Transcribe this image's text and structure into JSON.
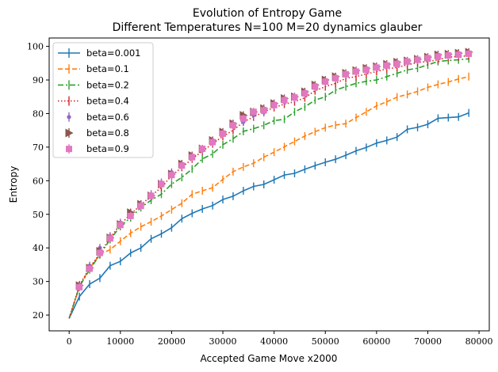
{
  "chart_data": {
    "type": "line",
    "title": "Evolution of Entropy Game",
    "subtitle": "Different Temperatures N=100 M=20 dynamics glauber",
    "xlabel": "Accepted Game Move x2000",
    "ylabel": "Entropy",
    "xlim": [
      -3900,
      82000
    ],
    "ylim": [
      15.3,
      102.5
    ],
    "x_ticks": [
      0,
      10000,
      20000,
      30000,
      40000,
      50000,
      60000,
      70000,
      80000
    ],
    "y_ticks": [
      20,
      30,
      40,
      50,
      60,
      70,
      80,
      90,
      100
    ],
    "grid": false,
    "legend_position": "upper-left",
    "x": [
      0,
      2000,
      4000,
      6000,
      8000,
      10000,
      12000,
      14000,
      16000,
      18000,
      20000,
      22000,
      24000,
      26000,
      28000,
      30000,
      32000,
      34000,
      36000,
      38000,
      40000,
      42000,
      44000,
      46000,
      48000,
      50000,
      52000,
      54000,
      56000,
      58000,
      60000,
      62000,
      64000,
      66000,
      68000,
      70000,
      72000,
      74000,
      76000,
      78000
    ],
    "series": [
      {
        "name": "beta=0.001",
        "color": "#1f77b4",
        "line": "solid",
        "marker": "none",
        "values": [
          19.0,
          25.5,
          29.2,
          31.0,
          34.7,
          36.0,
          38.5,
          40.0,
          42.7,
          44.2,
          46.0,
          48.7,
          50.3,
          51.6,
          52.6,
          54.4,
          55.4,
          57.0,
          58.3,
          58.9,
          60.3,
          61.7,
          62.2,
          63.4,
          64.5,
          65.5,
          66.4,
          67.6,
          68.9,
          69.9,
          71.2,
          72.0,
          73.0,
          75.3,
          75.9,
          76.8,
          78.6,
          78.8,
          79.0,
          80.2
        ]
      },
      {
        "name": "beta=0.1",
        "color": "#ff7f0e",
        "line": "dashed",
        "marker": "none",
        "values": [
          19.0,
          28.3,
          34.0,
          38.0,
          39.5,
          42.0,
          44.4,
          46.3,
          47.8,
          49.5,
          51.4,
          53.3,
          56.0,
          57.0,
          57.9,
          60.4,
          62.7,
          64.1,
          65.2,
          67.0,
          68.5,
          70.1,
          71.7,
          73.3,
          74.6,
          75.8,
          76.6,
          77.0,
          78.8,
          80.5,
          82.3,
          83.5,
          84.9,
          85.7,
          86.6,
          87.8,
          88.7,
          89.4,
          90.3,
          91.0
        ]
      },
      {
        "name": "beta=0.2",
        "color": "#2ca02c",
        "line": "dashdot",
        "marker": "none",
        "values": [
          19.0,
          28.5,
          33.5,
          38.0,
          42.5,
          46.4,
          49.0,
          52.0,
          54.2,
          56.0,
          59.0,
          61.0,
          63.5,
          66.5,
          68.0,
          70.7,
          72.5,
          74.7,
          75.5,
          76.5,
          77.9,
          78.3,
          80.5,
          82.0,
          84.0,
          85.0,
          87.0,
          88.0,
          89.0,
          89.6,
          90.0,
          91.0,
          92.0,
          93.0,
          93.5,
          94.5,
          95.5,
          95.8,
          96.0,
          96.3
        ]
      },
      {
        "name": "beta=0.4",
        "color": "#d62728",
        "line": "dotted",
        "marker": "none",
        "values": [
          19.0,
          28.8,
          34.1,
          38.3,
          43.0,
          47.0,
          50.0,
          52.8,
          55.5,
          58.0,
          61.5,
          64.0,
          66.5,
          68.8,
          71.0,
          73.2,
          75.0,
          77.5,
          79.0,
          80.5,
          81.8,
          82.8,
          83.5,
          84.7,
          86.8,
          88.0,
          89.0,
          90.5,
          91.0,
          91.8,
          92.5,
          93.3,
          93.7,
          94.5,
          95.2,
          95.5,
          96.0,
          96.8,
          97.0,
          97.2
        ]
      },
      {
        "name": "beta=0.6",
        "color": "#9467bd",
        "line": "none",
        "marker": "point",
        "values": [
          19.0,
          29.0,
          34.7,
          40.0,
          43.5,
          47.5,
          50.5,
          53.0,
          56.0,
          59.5,
          62.5,
          65.0,
          67.0,
          69.0,
          71.7,
          74.0,
          76.3,
          77.5,
          79.5,
          80.3,
          82.5,
          83.5,
          84.5,
          86.0,
          88.0,
          89.5,
          90.5,
          91.5,
          92.5,
          93.3,
          94.0,
          94.5,
          95.0,
          95.5,
          96.0,
          96.5,
          97.0,
          97.3,
          97.5,
          98.0
        ]
      },
      {
        "name": "beta=0.8",
        "color": "#8c564b",
        "line": "none",
        "marker": "triangle-right",
        "values": [
          19.0,
          28.8,
          34.0,
          39.0,
          43.0,
          47.0,
          50.5,
          53.0,
          55.5,
          59.0,
          62.0,
          65.0,
          67.5,
          69.5,
          72.0,
          74.5,
          77.0,
          79.5,
          80.5,
          81.5,
          83.0,
          84.5,
          85.0,
          86.5,
          88.5,
          90.0,
          91.0,
          92.0,
          92.8,
          93.5,
          94.0,
          94.7,
          95.3,
          95.7,
          96.2,
          96.8,
          97.5,
          97.7,
          98.0,
          98.3
        ]
      },
      {
        "name": "beta=0.9",
        "color": "#e377c2",
        "line": "none",
        "marker": "square",
        "values": [
          19.0,
          28.3,
          33.8,
          38.5,
          42.8,
          46.8,
          49.5,
          52.5,
          55.5,
          59.0,
          61.7,
          64.5,
          67.0,
          69.5,
          71.5,
          74.0,
          76.5,
          78.5,
          80.5,
          81.0,
          82.5,
          84.0,
          84.8,
          86.0,
          88.0,
          89.5,
          90.5,
          91.7,
          92.5,
          93.0,
          93.7,
          94.3,
          94.8,
          95.5,
          96.0,
          96.5,
          97.0,
          97.3,
          97.5,
          97.8
        ]
      }
    ]
  }
}
